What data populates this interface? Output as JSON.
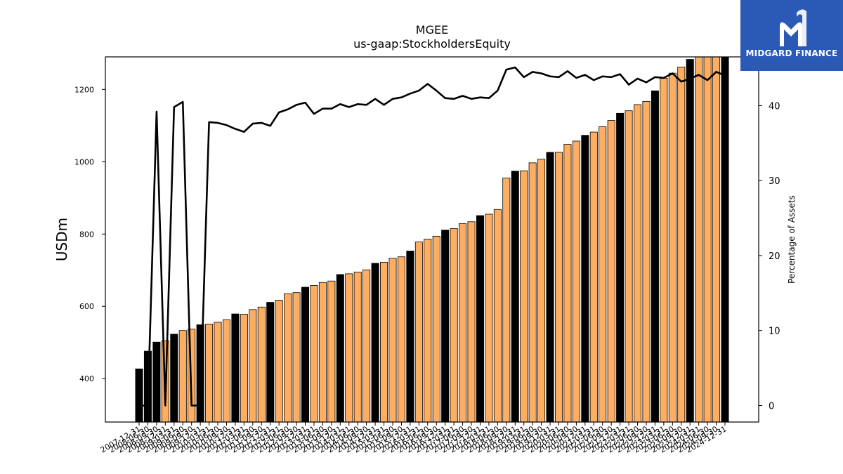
{
  "brand": {
    "name": "MIDGARD FINANCE",
    "icon": "midgard-logo-icon",
    "color": "#2a59b6"
  },
  "chart_data": {
    "type": "bar",
    "title": "MGEE",
    "subtitle": "us-gaap:StockholdersEquity",
    "ylabel": "USDm",
    "y2label": "Percentage of Assets",
    "ylim": [
      280,
      1290
    ],
    "y2lim": [
      -2.2,
      46.5
    ],
    "yticks": [
      400,
      600,
      800,
      1000,
      1200
    ],
    "y2ticks": [
      0,
      10,
      20,
      30,
      40
    ],
    "colors": {
      "annual_bar": "#000000",
      "quarter_bar": "#ffad60",
      "line": "#000000"
    },
    "grid": false,
    "categories": [
      "2007-12-31",
      "2008-06-30",
      "2008-09-30",
      "2008-12-31",
      "2009-03-31",
      "2009-06-30",
      "2009-09-30",
      "2009-12-31",
      "2010-03-31",
      "2010-06-30",
      "2010-09-30",
      "2010-12-31",
      "2011-03-31",
      "2011-06-30",
      "2011-09-30",
      "2011-12-31",
      "2012-03-31",
      "2012-06-30",
      "2012-09-30",
      "2012-12-31",
      "2013-03-31",
      "2013-06-30",
      "2013-09-30",
      "2013-12-31",
      "2014-03-31",
      "2014-06-30",
      "2014-09-30",
      "2014-12-31",
      "2015-03-31",
      "2015-06-30",
      "2015-09-30",
      "2015-12-31",
      "2016-03-31",
      "2016-06-30",
      "2016-09-30",
      "2016-12-31",
      "2017-03-31",
      "2017-06-30",
      "2017-09-30",
      "2017-12-31",
      "2018-03-31",
      "2018-06-30",
      "2018-09-30",
      "2018-12-31",
      "2019-03-31",
      "2019-06-30",
      "2019-09-30",
      "2019-12-31",
      "2020-03-31",
      "2020-06-30",
      "2020-09-30",
      "2020-12-31",
      "2021-03-31",
      "2021-06-30",
      "2021-09-30",
      "2021-12-31",
      "2022-03-31",
      "2022-06-30",
      "2022-09-30",
      "2022-12-31",
      "2023-03-31",
      "2023-06-30",
      "2023-09-30",
      "2023-12-31",
      "2024-03-31",
      "2024-06-30",
      "2024-09-30",
      "2024-12-31"
    ],
    "bar_kind": [
      "A",
      "A",
      "A",
      "Q",
      "A",
      "Q",
      "Q",
      "A",
      "Q",
      "Q",
      "Q",
      "A",
      "Q",
      "Q",
      "Q",
      "A",
      "Q",
      "Q",
      "Q",
      "A",
      "Q",
      "Q",
      "Q",
      "A",
      "Q",
      "Q",
      "Q",
      "A",
      "Q",
      "Q",
      "Q",
      "A",
      "Q",
      "Q",
      "Q",
      "A",
      "Q",
      "Q",
      "Q",
      "A",
      "Q",
      "Q",
      "Q",
      "A",
      "Q",
      "Q",
      "Q",
      "A",
      "Q",
      "Q",
      "Q",
      "A",
      "Q",
      "Q",
      "Q",
      "A",
      "Q",
      "Q",
      "Q",
      "A",
      "Q",
      "Q",
      "Q",
      "A",
      "Q",
      "Q",
      "Q",
      "A"
    ],
    "series": [
      {
        "name": "StockholdersEquity",
        "type": "bar",
        "values": [
          427,
          476,
          501,
          505,
          523,
          533,
          537,
          549,
          551,
          556,
          563,
          579,
          578,
          591,
          598,
          611,
          617,
          635,
          638,
          653,
          658,
          666,
          670,
          688,
          690,
          695,
          701,
          719,
          722,
          733,
          737,
          753,
          778,
          786,
          794,
          811,
          815,
          829,
          834,
          851,
          855,
          868,
          955,
          974,
          975,
          997,
          1007,
          1026,
          1026,
          1048,
          1057,
          1073,
          1082,
          1097,
          1114,
          1134,
          1141,
          1158,
          1167,
          1196,
          1231,
          1245,
          1262,
          1283,
          1309,
          1326,
          1337,
          1352
        ]
      },
      {
        "name": "Percentage of Assets",
        "type": "line",
        "values": [
          0,
          0,
          39.2,
          0,
          39.8,
          40.5,
          0,
          0,
          37.8,
          37.7,
          37.4,
          36.9,
          36.5,
          37.6,
          37.7,
          37.3,
          39.1,
          39.5,
          40.1,
          40.4,
          38.9,
          39.6,
          39.6,
          40.2,
          39.8,
          40.2,
          40.1,
          40.9,
          40.1,
          40.9,
          41.1,
          41.6,
          42,
          42.9,
          42,
          41,
          40.9,
          41.3,
          40.9,
          41.1,
          41,
          42,
          44.8,
          45.1,
          43.8,
          44.5,
          44.3,
          43.9,
          43.8,
          44.6,
          43.7,
          44.1,
          43.4,
          43.9,
          43.8,
          44.2,
          42.8,
          43.6,
          43.1,
          43.8,
          43.7,
          44.3,
          43.2,
          43.6,
          44.1,
          43.4,
          44.5,
          44
        ]
      }
    ]
  }
}
